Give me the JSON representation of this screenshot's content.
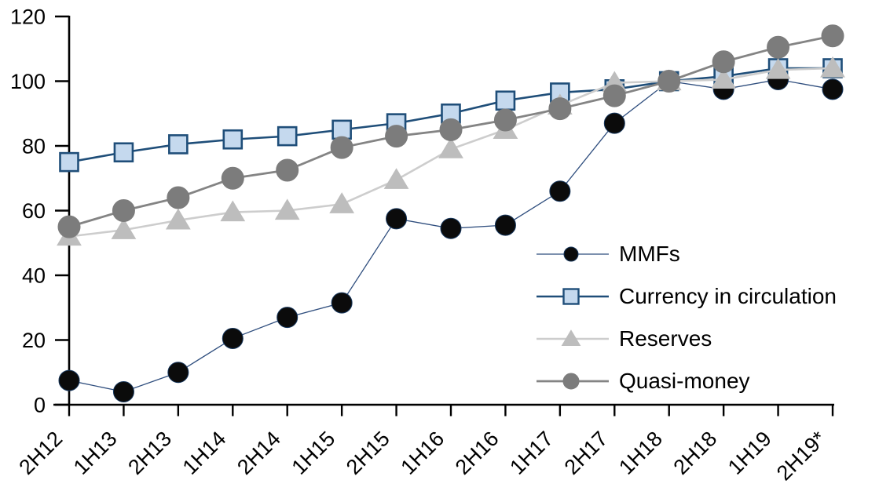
{
  "chart_data": {
    "type": "line",
    "title": "",
    "categories": [
      "2H12",
      "1H13",
      "2H13",
      "1H14",
      "2H14",
      "1H15",
      "2H15",
      "1H16",
      "2H16",
      "1H17",
      "2H17",
      "1H18",
      "2H18",
      "1H19",
      "2H19*"
    ],
    "series": [
      {
        "name": "MMFs",
        "marker": "circle",
        "marker_size": 26,
        "marker_fill": "#0B0B0B",
        "marker_stroke": "#16365C",
        "line_color": "#2F4E7E",
        "line_width": 1.3,
        "values": [
          7.5,
          4,
          10,
          20.5,
          27,
          31.5,
          57.5,
          54.5,
          55.5,
          66,
          87,
          100,
          97.5,
          100.5,
          97.5
        ]
      },
      {
        "name": "Currency in circulation",
        "marker": "square",
        "marker_size": 23,
        "marker_fill": "#C5D9EE",
        "marker_stroke": "#1F4E79",
        "line_color": "#1F4E79",
        "line_width": 2.6,
        "values": [
          75,
          78,
          80.5,
          82,
          83,
          85,
          87,
          90,
          94,
          96.5,
          97.5,
          100,
          101.5,
          104,
          104
        ]
      },
      {
        "name": "Reserves",
        "marker": "triangle",
        "marker_size": 30,
        "marker_fill": "#BDBDBD",
        "marker_stroke": "#BDBDBD",
        "line_color": "#CDCDCD",
        "line_width": 2.6,
        "values": [
          52,
          54,
          57,
          59.5,
          60,
          62,
          69.5,
          79,
          85,
          92.5,
          99.5,
          100,
          100.5,
          103.5,
          104
        ]
      },
      {
        "name": "Quasi-money",
        "marker": "circle",
        "marker_size": 28,
        "marker_fill": "#7C7C7C",
        "marker_stroke": "#7C7C7C",
        "line_color": "#848484",
        "line_width": 2.8,
        "values": [
          55,
          60,
          64,
          70,
          72.5,
          79.5,
          83,
          85,
          88,
          91.5,
          95.5,
          100,
          106,
          110.5,
          114
        ]
      }
    ],
    "x_axis": {
      "tick_labels_rotation": -45
    },
    "y_axis": {
      "min": 0,
      "max": 120,
      "step": 20,
      "tick_labels": [
        "0",
        "20",
        "40",
        "60",
        "80",
        "100",
        "120"
      ]
    },
    "legend_position": "inside-right",
    "grid": false,
    "axis_color": "#000000",
    "background": "#FFFFFF"
  }
}
